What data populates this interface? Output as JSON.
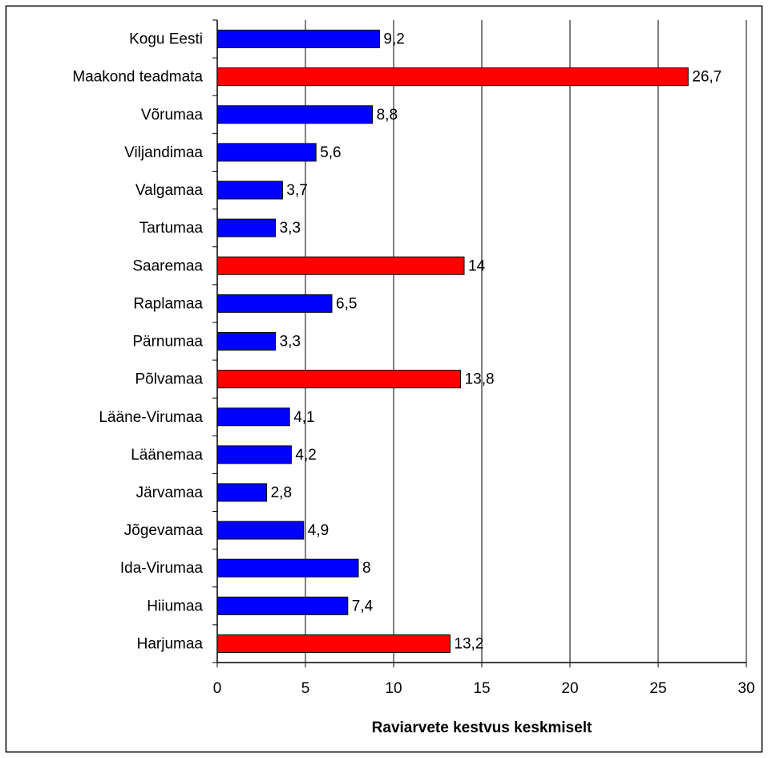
{
  "chart_data": {
    "type": "barh",
    "xlabel": "Raviarvete kestvus keskmiselt",
    "categories": [
      "Kogu Eesti",
      "Maakond teadmata",
      "Võrumaa",
      "Viljandimaa",
      "Valgamaa",
      "Tartumaa",
      "Saaremaa",
      "Raplamaa",
      "Pärnumaa",
      "Põlvamaa",
      "Lääne-Virumaa",
      "Läänemaa",
      "Järvamaa",
      "Jõgevamaa",
      "Ida-Virumaa",
      "Hiiumaa",
      "Harjumaa"
    ],
    "values": [
      9.2,
      26.7,
      8.8,
      5.6,
      3.7,
      3.3,
      14,
      6.5,
      3.3,
      13.8,
      4.1,
      4.2,
      2.8,
      4.9,
      8,
      7.4,
      13.2
    ],
    "value_labels": [
      "9,2",
      "26,7",
      "8,8",
      "5,6",
      "3,7",
      "3,3",
      "14",
      "6,5",
      "3,3",
      "13,8",
      "4,1",
      "4,2",
      "2,8",
      "4,9",
      "8",
      "7,4",
      "13,2"
    ],
    "colors": [
      "#0000ff",
      "#ff0000",
      "#0000ff",
      "#0000ff",
      "#0000ff",
      "#0000ff",
      "#ff0000",
      "#0000ff",
      "#0000ff",
      "#ff0000",
      "#0000ff",
      "#0000ff",
      "#0000ff",
      "#0000ff",
      "#0000ff",
      "#0000ff",
      "#ff0000"
    ],
    "xlim": [
      0,
      30
    ],
    "xticks": [
      0,
      5,
      10,
      15,
      20,
      25,
      30
    ],
    "grid": true
  }
}
